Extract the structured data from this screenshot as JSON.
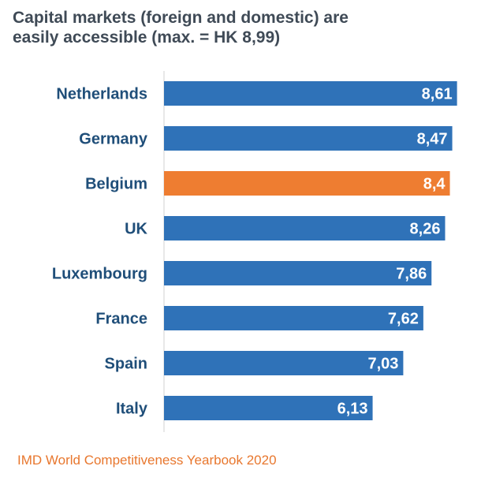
{
  "chart_data": {
    "type": "bar",
    "orientation": "horizontal",
    "title": "Capital markets (foreign and domestic) are easily accessible (max. = HK 8,99)",
    "title_lines": [
      "Capital markets (foreign and domestic) are",
      "easily accessible (max. = HK 8,99)"
    ],
    "categories": [
      "Netherlands",
      "Germany",
      "Belgium",
      "UK",
      "Luxembourg",
      "France",
      "Spain",
      "Italy"
    ],
    "values": [
      8.61,
      8.47,
      8.4,
      8.26,
      7.86,
      7.62,
      7.03,
      6.13
    ],
    "value_labels": [
      "8,61",
      "8,47",
      "8,4",
      "8,26",
      "7,86",
      "7,62",
      "7,03",
      "6,13"
    ],
    "highlight": "Belgium",
    "xlim": [
      0,
      8.99
    ],
    "grid": false,
    "colors": {
      "bar": "#2f72b8",
      "highlight": "#ee7d31",
      "category_label": "#1f4e79",
      "value_label": "#ffffff",
      "axis": "#d0d0d0"
    }
  },
  "source": "IMD World Competitiveness Yearbook 2020"
}
